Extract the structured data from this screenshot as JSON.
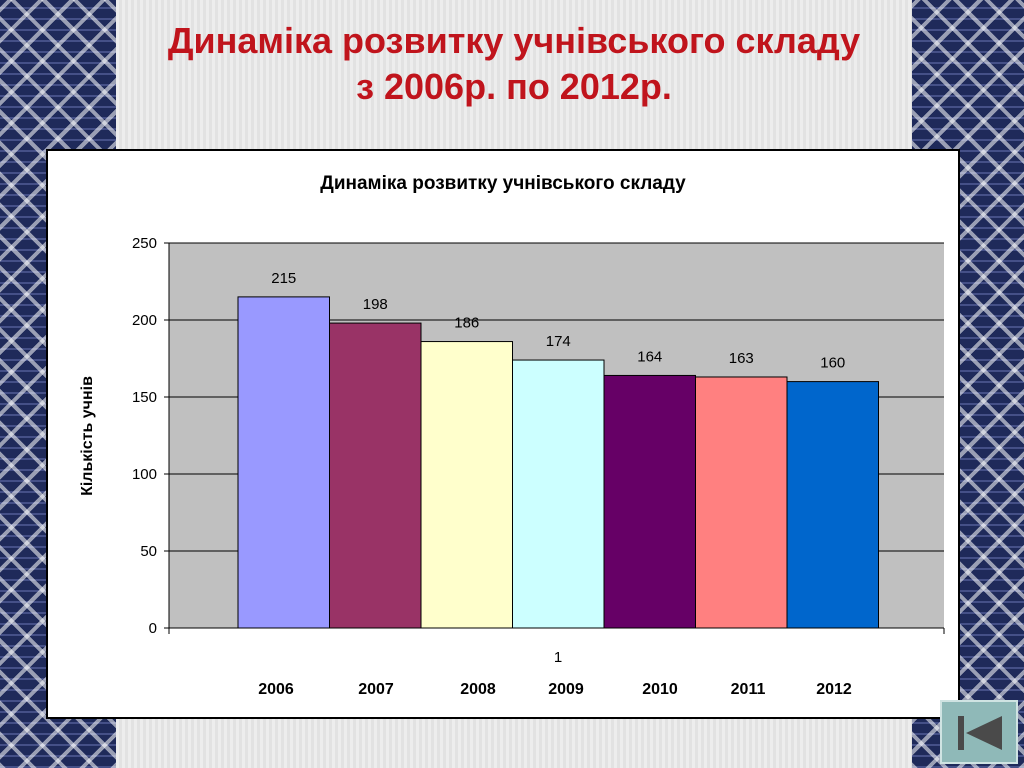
{
  "slide": {
    "title_line1": "Динаміка розвитку учнівського складу",
    "title_line2": "з 2006р. по 2012р."
  },
  "colors": {
    "title": "#c0141c",
    "plot_background": "#c0c0c0"
  },
  "chart_data": {
    "type": "bar",
    "title": "Динаміка розвитку учнівського складу",
    "ylabel": "Кількість учнів",
    "xlabel": "",
    "category_tick": "1",
    "ylim": [
      0,
      250
    ],
    "y_ticks": [
      0,
      50,
      100,
      150,
      200,
      250
    ],
    "grid": true,
    "series": [
      {
        "name": "2006",
        "value": 215,
        "color": "#9999ff"
      },
      {
        "name": "2007",
        "value": 198,
        "color": "#993366"
      },
      {
        "name": "2008",
        "value": 186,
        "color": "#ffffcc"
      },
      {
        "name": "2009",
        "value": 174,
        "color": "#ccffff"
      },
      {
        "name": "2010",
        "value": 164,
        "color": "#660066"
      },
      {
        "name": "2011",
        "value": 163,
        "color": "#ff8080"
      },
      {
        "name": "2012",
        "value": 160,
        "color": "#0066cc"
      }
    ],
    "legend": "bottom"
  },
  "navigation": {
    "back_icon": "skip-back-icon"
  }
}
